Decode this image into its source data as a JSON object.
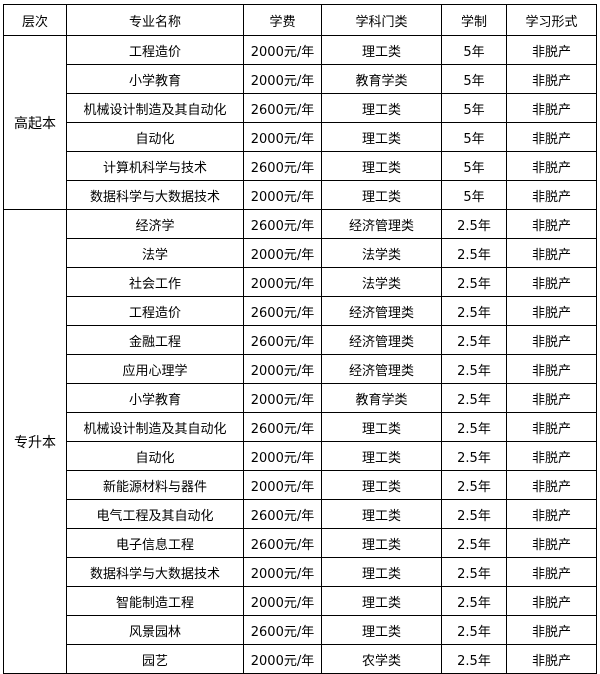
{
  "headers": [
    "层次",
    "专业名称",
    "学费",
    "学科门类",
    "学制",
    "学习形式"
  ],
  "groups": [
    {
      "level": "高起本",
      "rows": [
        [
          "工程造价",
          "2000元/年",
          "理工类",
          "5年",
          "非脱产"
        ],
        [
          "小学教育",
          "2000元/年",
          "教育学类",
          "5年",
          "非脱产"
        ],
        [
          "机械设计制造及其自动化",
          "2600元/年",
          "理工类",
          "5年",
          "非脱产"
        ],
        [
          "自动化",
          "2000元/年",
          "理工类",
          "5年",
          "非脱产"
        ],
        [
          "计算机科学与技术",
          "2600元/年",
          "理工类",
          "5年",
          "非脱产"
        ],
        [
          "数据科学与大数据技术",
          "2000元/年",
          "理工类",
          "5年",
          "非脱产"
        ]
      ]
    },
    {
      "level": "专升本",
      "rows": [
        [
          "经济学",
          "2600元/年",
          "经济管理类",
          "2.5年",
          "非脱产"
        ],
        [
          "法学",
          "2000元/年",
          "法学类",
          "2.5年",
          "非脱产"
        ],
        [
          "社会工作",
          "2000元/年",
          "法学类",
          "2.5年",
          "非脱产"
        ],
        [
          "工程造价",
          "2600元/年",
          "经济管理类",
          "2.5年",
          "非脱产"
        ],
        [
          "金融工程",
          "2600元/年",
          "经济管理类",
          "2.5年",
          "非脱产"
        ],
        [
          "应用心理学",
          "2000元/年",
          "经济管理类",
          "2.5年",
          "非脱产"
        ],
        [
          "小学教育",
          "2000元/年",
          "教育学类",
          "2.5年",
          "非脱产"
        ],
        [
          "机械设计制造及其自动化",
          "2600元/年",
          "理工类",
          "2.5年",
          "非脱产"
        ],
        [
          "自动化",
          "2000元/年",
          "理工类",
          "2.5年",
          "非脱产"
        ],
        [
          "新能源材料与器件",
          "2000元/年",
          "理工类",
          "2.5年",
          "非脱产"
        ],
        [
          "电气工程及其自动化",
          "2600元/年",
          "理工类",
          "2.5年",
          "非脱产"
        ],
        [
          "电子信息工程",
          "2600元/年",
          "理工类",
          "2.5年",
          "非脱产"
        ],
        [
          "数据科学与大数据技术",
          "2000元/年",
          "理工类",
          "2.5年",
          "非脱产"
        ],
        [
          "智能制造工程",
          "2000元/年",
          "理工类",
          "2.5年",
          "非脱产"
        ],
        [
          "风景园林",
          "2600元/年",
          "理工类",
          "2.5年",
          "非脱产"
        ],
        [
          "园艺",
          "2000元/年",
          "农学类",
          "2.5年",
          "非脱产"
        ]
      ]
    }
  ]
}
